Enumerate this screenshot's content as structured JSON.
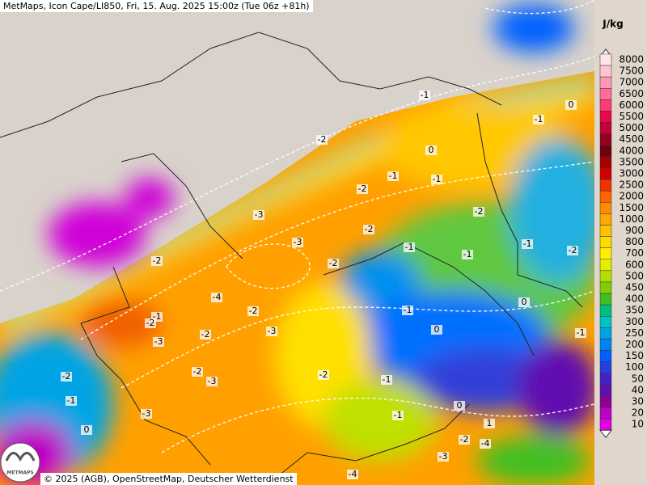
{
  "header": {
    "title": "MetMaps, Icon Cape/LI850, Fri, 15. Aug. 2025 15:00z (Tue 06z +81h)"
  },
  "footer": {
    "copyright": "© 2025 (AGB), OpenStreetMap, Deutscher Wetterdienst",
    "logo": "METMAPS"
  },
  "legend": {
    "unit": "J/kg",
    "items": [
      {
        "label": "8000",
        "color": "#ffe4ec"
      },
      {
        "label": "7500",
        "color": "#ffc4d4"
      },
      {
        "label": "7000",
        "color": "#ff98b8"
      },
      {
        "label": "6500",
        "color": "#ff6a98"
      },
      {
        "label": "6000",
        "color": "#ff3a78"
      },
      {
        "label": "5500",
        "color": "#e8084e"
      },
      {
        "label": "5000",
        "color": "#c40034"
      },
      {
        "label": "4500",
        "color": "#960020"
      },
      {
        "label": "4000",
        "color": "#6e0010"
      },
      {
        "label": "3500",
        "color": "#a80000"
      },
      {
        "label": "3000",
        "color": "#d40000"
      },
      {
        "label": "2500",
        "color": "#f03400"
      },
      {
        "label": "2000",
        "color": "#ff6400"
      },
      {
        "label": "1500",
        "color": "#ff8c00"
      },
      {
        "label": "1000",
        "color": "#ffa800"
      },
      {
        "label": "900",
        "color": "#ffc200"
      },
      {
        "label": "800",
        "color": "#ffda00"
      },
      {
        "label": "700",
        "color": "#fff000"
      },
      {
        "label": "600",
        "color": "#e0f000"
      },
      {
        "label": "500",
        "color": "#b2e000"
      },
      {
        "label": "450",
        "color": "#80d000"
      },
      {
        "label": "400",
        "color": "#40c020"
      },
      {
        "label": "350",
        "color": "#00c080"
      },
      {
        "label": "300",
        "color": "#00c4c4"
      },
      {
        "label": "250",
        "color": "#00a4e4"
      },
      {
        "label": "200",
        "color": "#0084f4"
      },
      {
        "label": "150",
        "color": "#0060ff"
      },
      {
        "label": "100",
        "color": "#2440e0"
      },
      {
        "label": "50",
        "color": "#4422c0"
      },
      {
        "label": "40",
        "color": "#6010b0"
      },
      {
        "label": "30",
        "color": "#900094"
      },
      {
        "label": "20",
        "color": "#c000c4"
      },
      {
        "label": "10",
        "color": "#e000e8"
      }
    ]
  },
  "contours": {
    "labels": [
      "-1",
      "0",
      "-1",
      "-2",
      "0",
      "-1",
      "-1",
      "-2",
      "-2",
      "-3",
      "-2",
      "-1",
      "-2",
      "-3",
      "-2",
      "-2",
      "-1",
      "-1",
      "-4",
      "-2",
      "-1",
      "-2",
      "-3",
      "-2",
      "-3",
      "0",
      "-1",
      "-1",
      "-2",
      "-2",
      "-3",
      "-1",
      "-2",
      "-1",
      "-3",
      "-1",
      "0",
      "1",
      "0",
      "-2",
      "-4",
      "-3",
      "-4",
      "0"
    ]
  }
}
